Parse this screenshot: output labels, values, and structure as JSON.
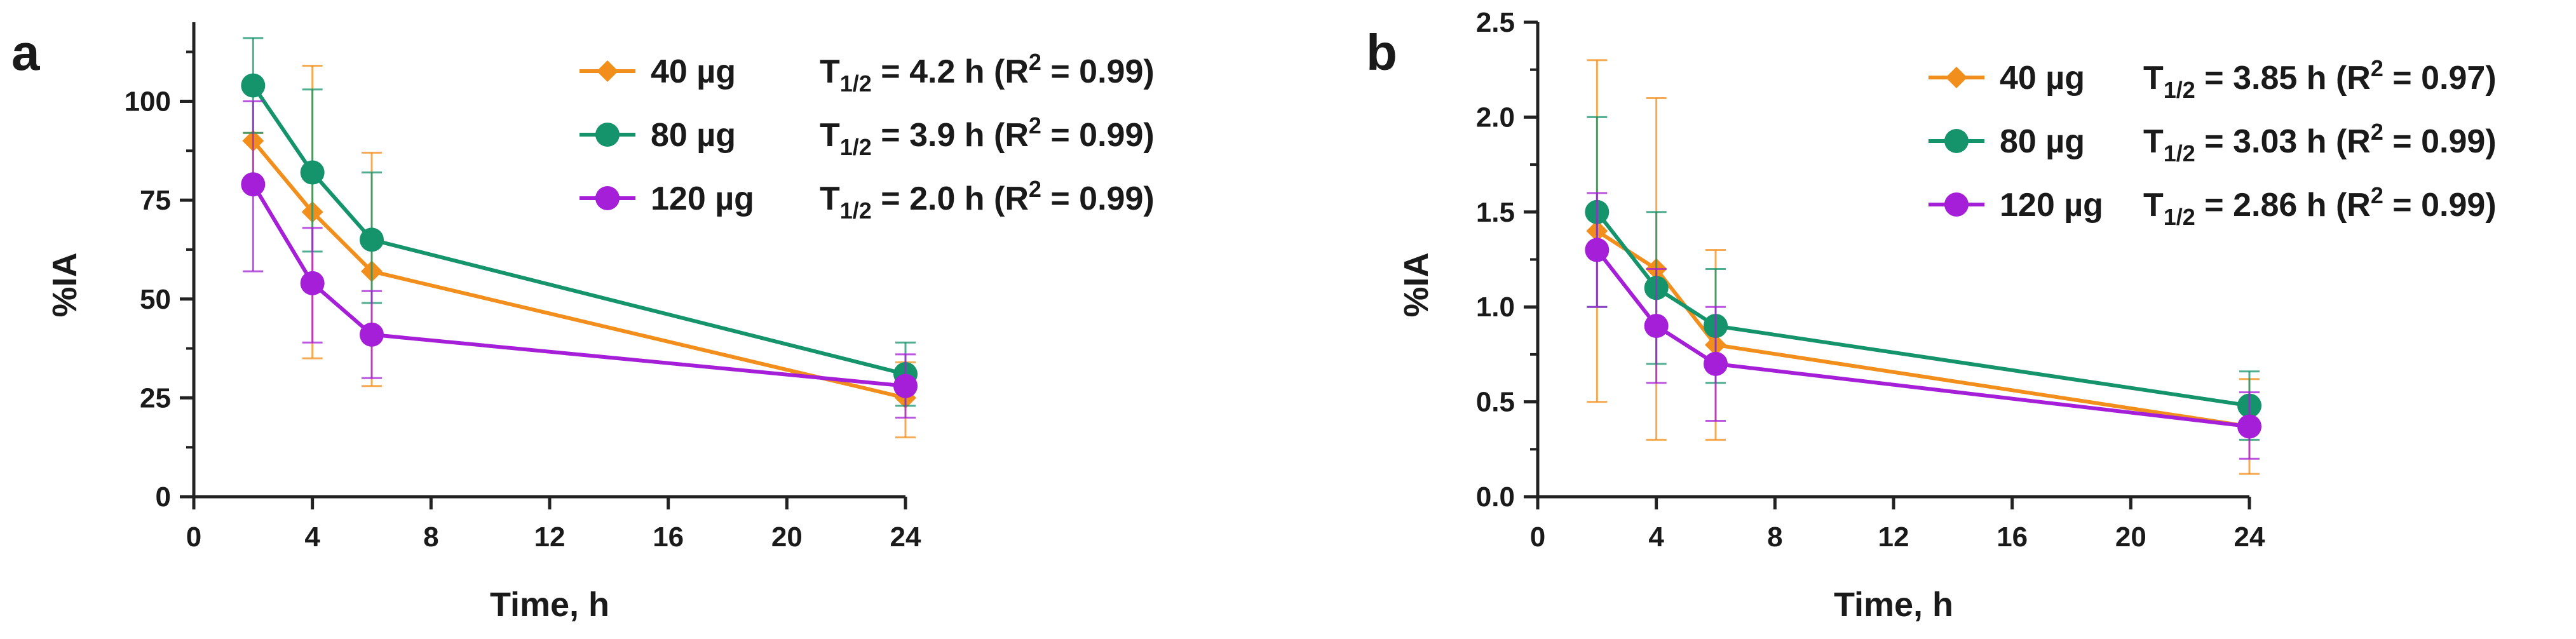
{
  "chart_data": [
    {
      "type": "line",
      "panel_label": "a",
      "xlabel": "Time, h",
      "ylabel": "%IA",
      "xlim": [
        0,
        24
      ],
      "ylim": [
        0,
        120
      ],
      "x_ticks": [
        "0",
        "4",
        "8",
        "12",
        "16",
        "20",
        "24"
      ],
      "y_ticks": [
        "0",
        "25",
        "50",
        "75",
        "100"
      ],
      "legend_position": "top-right",
      "series": [
        {
          "name": "40 µg",
          "fit_label": "T",
          "fit_sub": "1/2",
          "fit_mid": " = 4.2 h (R",
          "fit_sup": "2",
          "fit_end": " = 0.99)",
          "color": "#F28E1C",
          "marker": "diamond",
          "x": [
            2,
            4,
            6,
            24
          ],
          "y": [
            90,
            72,
            57,
            25
          ],
          "err_low": [
            78,
            35,
            28,
            15
          ],
          "err_high": [
            92,
            109,
            87,
            34
          ]
        },
        {
          "name": "80 µg",
          "fit_label": "T",
          "fit_sub": "1/2",
          "fit_mid": " = 3.9 h (R",
          "fit_sup": "2",
          "fit_end": " = 0.99)",
          "color": "#15936B",
          "marker": "circle",
          "x": [
            2,
            4,
            6,
            24
          ],
          "y": [
            104,
            82,
            65,
            31
          ],
          "err_low": [
            92,
            62,
            49,
            23
          ],
          "err_high": [
            116,
            103,
            82,
            39
          ]
        },
        {
          "name": "120 µg",
          "fit_label": "T",
          "fit_sub": "1/2",
          "fit_mid": " = 2.0 h (R",
          "fit_sup": "2",
          "fit_end": " = 0.99)",
          "color": "#A51ED8",
          "marker": "circle",
          "x": [
            2,
            4,
            6,
            24
          ],
          "y": [
            79,
            54,
            41,
            28
          ],
          "err_low": [
            57,
            39,
            30,
            20
          ],
          "err_high": [
            100,
            68,
            52,
            36
          ]
        }
      ]
    },
    {
      "type": "line",
      "panel_label": "b",
      "xlabel": "Time, h",
      "ylabel": "%IA",
      "xlim": [
        0,
        24
      ],
      "ylim": [
        0,
        2.5
      ],
      "x_ticks": [
        "0",
        "4",
        "8",
        "12",
        "16",
        "20",
        "24"
      ],
      "y_ticks": [
        "0.0",
        "0.5",
        "1.0",
        "1.5",
        "2.0",
        "2.5"
      ],
      "legend_position": "top-right",
      "series": [
        {
          "name": "40 µg",
          "fit_label": "T",
          "fit_sub": "1/2",
          "fit_mid": " = 3.85 h (R",
          "fit_sup": "2",
          "fit_end": " = 0.97)",
          "color": "#F28E1C",
          "marker": "diamond",
          "x": [
            2,
            4,
            6,
            24
          ],
          "y": [
            1.4,
            1.2,
            0.8,
            0.37
          ],
          "err_low": [
            0.5,
            0.3,
            0.3,
            0.12
          ],
          "err_high": [
            2.3,
            2.1,
            1.3,
            0.62
          ]
        },
        {
          "name": "80 µg",
          "fit_label": "T",
          "fit_sub": "1/2",
          "fit_mid": " = 3.03 h (R",
          "fit_sup": "2",
          "fit_end": " = 0.99)",
          "color": "#15936B",
          "marker": "circle",
          "x": [
            2,
            4,
            6,
            24
          ],
          "y": [
            1.5,
            1.1,
            0.9,
            0.48
          ],
          "err_low": [
            1.0,
            0.7,
            0.6,
            0.3
          ],
          "err_high": [
            2.0,
            1.5,
            1.2,
            0.66
          ]
        },
        {
          "name": "120 µg",
          "fit_label": "T",
          "fit_sub": "1/2",
          "fit_mid": " = 2.86 h (R",
          "fit_sup": "2",
          "fit_end": " = 0.99)",
          "color": "#A51ED8",
          "marker": "circle",
          "x": [
            2,
            4,
            6,
            24
          ],
          "y": [
            1.3,
            0.9,
            0.7,
            0.37
          ],
          "err_low": [
            1.0,
            0.6,
            0.4,
            0.2
          ],
          "err_high": [
            1.6,
            1.2,
            1.0,
            0.55
          ]
        }
      ]
    }
  ]
}
